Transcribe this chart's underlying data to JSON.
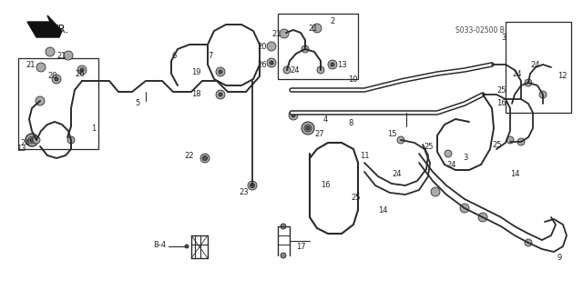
{
  "bg_color": "#ffffff",
  "line_color": "#2a2a2a",
  "part_number": "S033-02500 B",
  "fig_width": 6.4,
  "fig_height": 3.19,
  "dpi": 100,
  "lw": 1.1,
  "lw_thick": 2.8,
  "fs_label": 6.0,
  "fs_pn": 5.5,
  "gray": "#555555",
  "dark": "#222222"
}
